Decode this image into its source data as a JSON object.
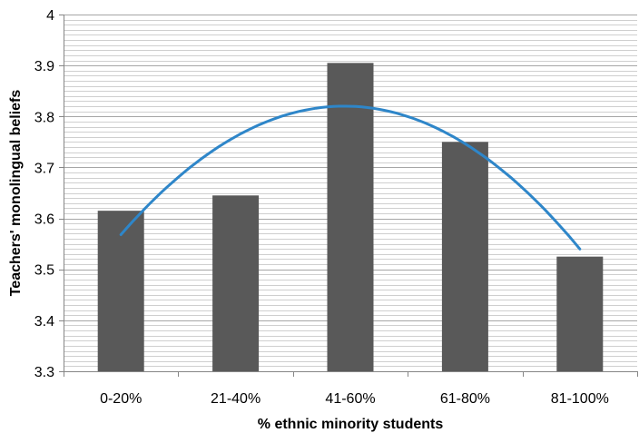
{
  "chart_data": {
    "type": "bar",
    "title": "",
    "xlabel": "% ethnic minority students",
    "ylabel": "Teachers' monolingual beliefs",
    "categories": [
      "0-20%",
      "21-40%",
      "41-60%",
      "61-80%",
      "81-100%"
    ],
    "values": [
      3.615,
      3.645,
      3.905,
      3.75,
      3.525
    ],
    "ylim": [
      3.3,
      4.0
    ],
    "yticks": [
      "3.3",
      "3.4",
      "3.5",
      "3.6",
      "3.7",
      "3.8",
      "3.9",
      "4"
    ],
    "minor_grid_step": 0.01,
    "major_grid_step": 0.1,
    "trendline": {
      "type": "polynomial",
      "order": 2,
      "values": [
        3.568,
        3.753,
        3.82,
        3.768,
        3.54
      ]
    },
    "grid": true,
    "legend": "none",
    "colors": {
      "bar": "#595959",
      "trendline": "#2E86C9",
      "grid": "#bfbfbf"
    }
  }
}
